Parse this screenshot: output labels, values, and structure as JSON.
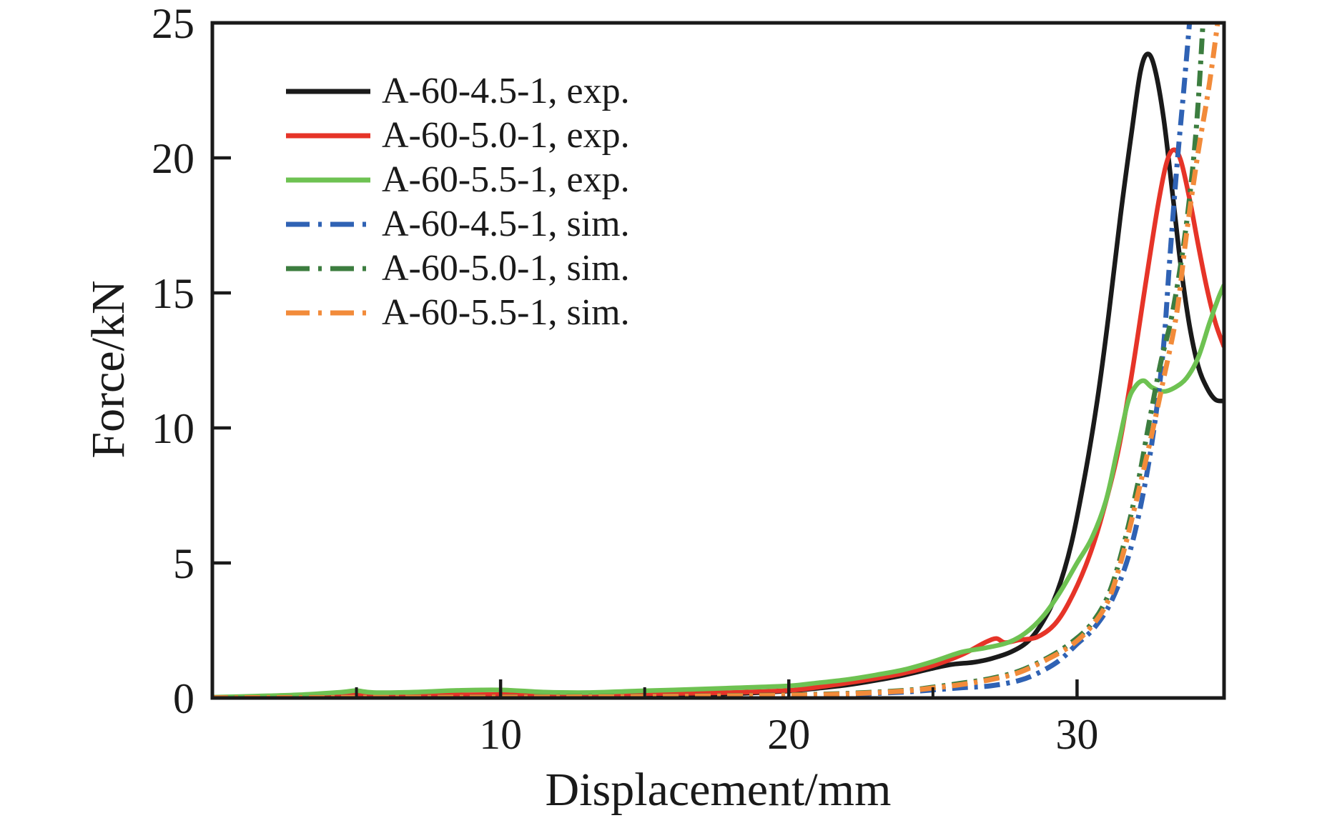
{
  "chart_data": {
    "type": "line",
    "title": "",
    "xlabel": "Displacement/mm",
    "ylabel": "Force/kN",
    "xlim": [
      0,
      35.1
    ],
    "ylim": [
      0,
      25
    ],
    "grid": false,
    "legend_position": "upper-left",
    "x_axis": {
      "label": "Displacement/mm",
      "major_ticks": [
        10,
        20,
        30
      ],
      "minor_ticks": [
        5,
        15,
        25
      ]
    },
    "y_axis": {
      "label": "Force/kN",
      "major_ticks": [
        0,
        5,
        10,
        15,
        20,
        25
      ]
    },
    "axis_color": "#1a1a1a",
    "series": [
      {
        "name": "A-60-4.5-1, exp.",
        "color": "#1a1a1a",
        "style": "solid",
        "points": [
          [
            0,
            0.02
          ],
          [
            2,
            0.04
          ],
          [
            4,
            0.07
          ],
          [
            5,
            0.1
          ],
          [
            6,
            0.08
          ],
          [
            8,
            0.08
          ],
          [
            10,
            0.1
          ],
          [
            12,
            0.1
          ],
          [
            14,
            0.11
          ],
          [
            16,
            0.13
          ],
          [
            18,
            0.16
          ],
          [
            20,
            0.26
          ],
          [
            21,
            0.36
          ],
          [
            22,
            0.48
          ],
          [
            23,
            0.65
          ],
          [
            24,
            0.85
          ],
          [
            25,
            1.1
          ],
          [
            25.7,
            1.25
          ],
          [
            26.4,
            1.32
          ],
          [
            27,
            1.45
          ],
          [
            27.7,
            1.7
          ],
          [
            28.3,
            2.1
          ],
          [
            28.8,
            2.8
          ],
          [
            29.3,
            3.9
          ],
          [
            29.8,
            5.7
          ],
          [
            30.3,
            8.4
          ],
          [
            30.7,
            11
          ],
          [
            31.1,
            14.2
          ],
          [
            31.5,
            17.8
          ],
          [
            31.9,
            21
          ],
          [
            32.2,
            23.2
          ],
          [
            32.45,
            23.85
          ],
          [
            32.7,
            23.3
          ],
          [
            33,
            21.5
          ],
          [
            33.3,
            18.8
          ],
          [
            33.6,
            16
          ],
          [
            33.9,
            13.8
          ],
          [
            34.2,
            12.3
          ],
          [
            34.5,
            11.5
          ],
          [
            34.8,
            11.05
          ],
          [
            35.1,
            11
          ]
        ]
      },
      {
        "name": "A-60-5.0-1, exp.",
        "color": "#e63428",
        "style": "solid",
        "points": [
          [
            0,
            0.02
          ],
          [
            2,
            0.05
          ],
          [
            4,
            0.09
          ],
          [
            4.8,
            0.17
          ],
          [
            5.3,
            0.12
          ],
          [
            6,
            0.11
          ],
          [
            8,
            0.11
          ],
          [
            10,
            0.13
          ],
          [
            12,
            0.14
          ],
          [
            14,
            0.15
          ],
          [
            16,
            0.17
          ],
          [
            18,
            0.2
          ],
          [
            20,
            0.28
          ],
          [
            21,
            0.4
          ],
          [
            22,
            0.55
          ],
          [
            23,
            0.72
          ],
          [
            24,
            0.92
          ],
          [
            25,
            1.2
          ],
          [
            26,
            1.6
          ],
          [
            26.8,
            2.05
          ],
          [
            27.2,
            2.2
          ],
          [
            27.5,
            2.05
          ],
          [
            28,
            2.15
          ],
          [
            28.6,
            2.25
          ],
          [
            29.2,
            2.7
          ],
          [
            29.7,
            3.5
          ],
          [
            30.3,
            4.9
          ],
          [
            30.8,
            6.5
          ],
          [
            31.4,
            9
          ],
          [
            31.9,
            12
          ],
          [
            32.4,
            15.5
          ],
          [
            32.8,
            18.2
          ],
          [
            33.1,
            19.8
          ],
          [
            33.35,
            20.3
          ],
          [
            33.6,
            19.9
          ],
          [
            33.9,
            18.5
          ],
          [
            34.2,
            16.8
          ],
          [
            34.5,
            15.2
          ],
          [
            34.8,
            13.9
          ],
          [
            35.1,
            13
          ]
        ]
      },
      {
        "name": "A-60-5.5-1, exp.",
        "color": "#6ec252",
        "style": "solid",
        "points": [
          [
            0,
            0.03
          ],
          [
            1.5,
            0.07
          ],
          [
            3,
            0.12
          ],
          [
            4.5,
            0.22
          ],
          [
            5,
            0.27
          ],
          [
            5.6,
            0.2
          ],
          [
            7,
            0.22
          ],
          [
            8.5,
            0.28
          ],
          [
            10,
            0.3
          ],
          [
            11.5,
            0.22
          ],
          [
            13,
            0.2
          ],
          [
            14.5,
            0.25
          ],
          [
            16,
            0.3
          ],
          [
            18,
            0.37
          ],
          [
            20,
            0.45
          ],
          [
            21,
            0.56
          ],
          [
            22,
            0.68
          ],
          [
            23,
            0.85
          ],
          [
            24,
            1.05
          ],
          [
            25,
            1.35
          ],
          [
            26,
            1.7
          ],
          [
            26.8,
            1.85
          ],
          [
            27.6,
            2.05
          ],
          [
            28.2,
            2.4
          ],
          [
            28.8,
            3
          ],
          [
            29.4,
            3.9
          ],
          [
            30,
            5
          ],
          [
            30.5,
            5.9
          ],
          [
            31,
            7.3
          ],
          [
            31.4,
            9.2
          ],
          [
            31.75,
            10.9
          ],
          [
            32,
            11.5
          ],
          [
            32.3,
            11.75
          ],
          [
            32.6,
            11.5
          ],
          [
            33,
            11.35
          ],
          [
            33.4,
            11.5
          ],
          [
            33.8,
            11.85
          ],
          [
            34.2,
            12.6
          ],
          [
            34.6,
            13.9
          ],
          [
            34.9,
            14.8
          ],
          [
            35.1,
            15.3
          ]
        ]
      },
      {
        "name": "A-60-4.5-1, sim.",
        "color": "#2f62b4",
        "style": "dashdot",
        "points": [
          [
            0,
            0.01
          ],
          [
            5,
            0.02
          ],
          [
            10,
            0.03
          ],
          [
            15,
            0.05
          ],
          [
            18,
            0.06
          ],
          [
            20,
            0.08
          ],
          [
            22,
            0.13
          ],
          [
            24,
            0.22
          ],
          [
            25,
            0.3
          ],
          [
            26,
            0.38
          ],
          [
            27,
            0.45
          ],
          [
            28,
            0.65
          ],
          [
            28.7,
            0.95
          ],
          [
            29.4,
            1.4
          ],
          [
            30,
            2
          ],
          [
            30.6,
            2.6
          ],
          [
            31.2,
            3.6
          ],
          [
            31.8,
            5.3
          ],
          [
            32.3,
            7.6
          ],
          [
            32.7,
            10.2
          ],
          [
            33,
            13
          ],
          [
            33.2,
            16
          ],
          [
            33.45,
            19.5
          ],
          [
            33.7,
            22.5
          ],
          [
            33.95,
            25.6
          ]
        ]
      },
      {
        "name": "A-60-5.0-1, sim.",
        "color": "#3c7d3f",
        "style": "dashdot",
        "points": [
          [
            0,
            0.01
          ],
          [
            5,
            0.02
          ],
          [
            10,
            0.04
          ],
          [
            15,
            0.06
          ],
          [
            18,
            0.09
          ],
          [
            20,
            0.11
          ],
          [
            22,
            0.17
          ],
          [
            24,
            0.28
          ],
          [
            25,
            0.4
          ],
          [
            26,
            0.55
          ],
          [
            27,
            0.72
          ],
          [
            28,
            1
          ],
          [
            29,
            1.5
          ],
          [
            29.8,
            2.05
          ],
          [
            30.5,
            2.75
          ],
          [
            31.1,
            3.85
          ],
          [
            31.6,
            5.6
          ],
          [
            32.1,
            7.9
          ],
          [
            32.5,
            10.2
          ],
          [
            32.9,
            12.4
          ],
          [
            33.3,
            14.2
          ],
          [
            33.7,
            16.8
          ],
          [
            34,
            19.5
          ],
          [
            34.2,
            22
          ],
          [
            34.4,
            25.6
          ]
        ]
      },
      {
        "name": "A-60-5.5-1, sim.",
        "color": "#f28b3a",
        "style": "dashdot",
        "points": [
          [
            0,
            0.01
          ],
          [
            5,
            0.02
          ],
          [
            10,
            0.03
          ],
          [
            15,
            0.05
          ],
          [
            18,
            0.08
          ],
          [
            20,
            0.1
          ],
          [
            22,
            0.15
          ],
          [
            24,
            0.26
          ],
          [
            25,
            0.37
          ],
          [
            26,
            0.5
          ],
          [
            27,
            0.68
          ],
          [
            28,
            0.95
          ],
          [
            29,
            1.45
          ],
          [
            29.8,
            1.95
          ],
          [
            30.5,
            2.65
          ],
          [
            31.1,
            3.65
          ],
          [
            31.6,
            5.35
          ],
          [
            32.1,
            7.5
          ],
          [
            32.6,
            9.8
          ],
          [
            33,
            11.8
          ],
          [
            33.45,
            14.2
          ],
          [
            33.8,
            17.2
          ],
          [
            34.2,
            20.2
          ],
          [
            34.6,
            22.8
          ],
          [
            34.95,
            25.6
          ]
        ]
      }
    ]
  }
}
